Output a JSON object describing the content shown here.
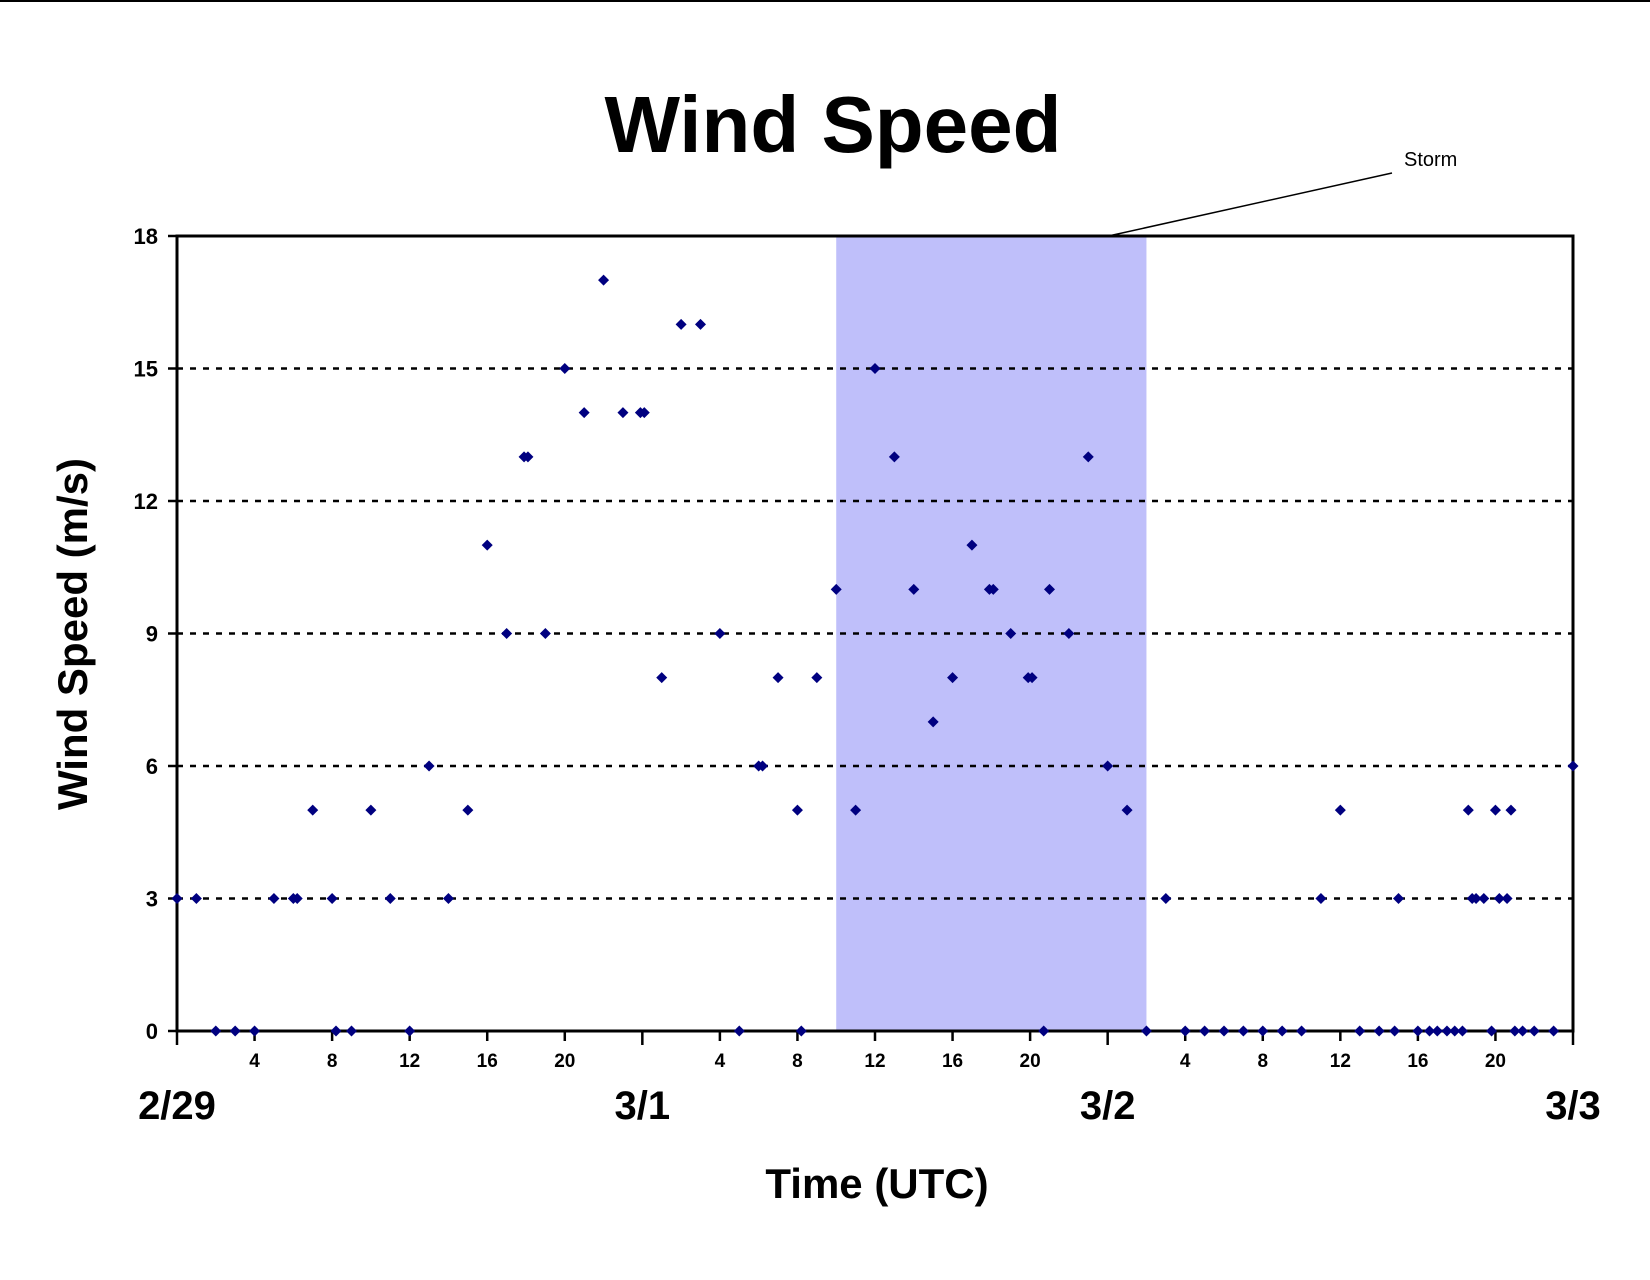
{
  "chart_data": {
    "type": "scatter",
    "title": "Wind Speed",
    "xlabel": "Time (UTC)",
    "ylabel": "Wind Speed (m/s)",
    "ylim": [
      0,
      18
    ],
    "yticks": [
      0,
      3,
      6,
      9,
      12,
      15,
      18
    ],
    "xlim_hours": [
      0,
      72
    ],
    "x_unit": "hours since 2/29 00:00 UTC",
    "day_labels": [
      {
        "hour": 0,
        "label": "2/29"
      },
      {
        "hour": 24,
        "label": "3/1"
      },
      {
        "hour": 48,
        "label": "3/2"
      },
      {
        "hour": 72,
        "label": "3/3"
      }
    ],
    "hour_tick_labels": [
      "4",
      "8",
      "12",
      "16",
      "20"
    ],
    "grid": "horizontal dotted",
    "marker_color": "#000080",
    "storm_band": {
      "label": "Storm",
      "start_hour": 34,
      "end_hour": 50,
      "color": "#bfbffa"
    },
    "series": [
      {
        "x": [
          0,
          1,
          2,
          3,
          4,
          5,
          6,
          6.2,
          7,
          8,
          8.2,
          9,
          10,
          11,
          12,
          13,
          14,
          15,
          16,
          17,
          17.9,
          18.1,
          19,
          20,
          21,
          22,
          23,
          23.9,
          24.1,
          25,
          26,
          27,
          28,
          29,
          30,
          30.2,
          31,
          32,
          32.2,
          33,
          34,
          35,
          36,
          37,
          38,
          39,
          40,
          41,
          41.9,
          42.1,
          43,
          43.9,
          44.1,
          44.7,
          45,
          46,
          47,
          48,
          49,
          50,
          51,
          52,
          53,
          54,
          55,
          56,
          57,
          58,
          59,
          60,
          61,
          62,
          62.8,
          63,
          64,
          64.6,
          65,
          65.5,
          65.9,
          66.3,
          66.6,
          66.8,
          67,
          67.4,
          67.8,
          68,
          68.2,
          68.6,
          68.8,
          69,
          69.4,
          70,
          71,
          72
        ],
        "y": [
          3,
          3,
          0,
          0,
          0,
          3,
          3,
          3,
          5,
          3,
          0,
          0,
          5,
          3,
          0,
          6,
          3,
          5,
          11,
          9,
          13,
          13,
          9,
          15,
          14,
          17,
          14,
          14,
          14,
          8,
          16,
          16,
          9,
          0,
          6,
          6,
          8,
          5,
          0,
          8,
          10,
          5,
          15,
          13,
          10,
          7,
          8,
          11,
          10,
          10,
          9,
          8,
          8,
          0,
          10,
          9,
          13,
          6,
          5,
          0,
          3,
          0,
          0,
          0,
          0,
          0,
          0,
          0,
          3,
          5,
          0,
          0,
          0,
          3,
          0,
          0,
          0,
          0,
          0,
          0,
          5,
          3,
          3,
          3,
          0,
          5,
          3,
          3,
          5,
          0,
          0,
          0,
          0,
          6
        ]
      }
    ]
  }
}
